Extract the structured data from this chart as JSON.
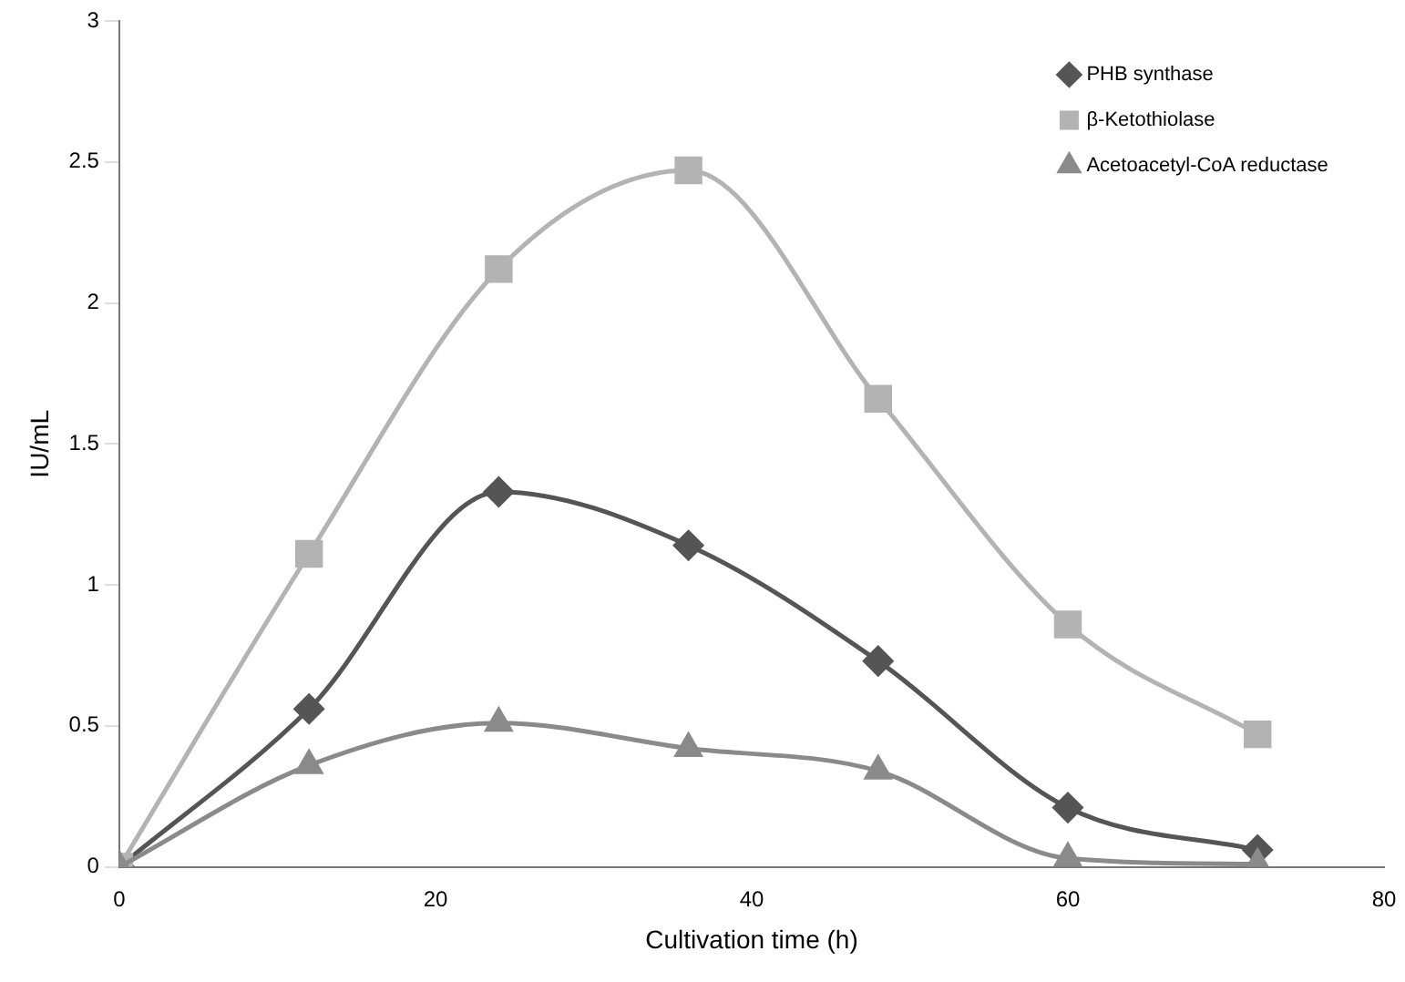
{
  "chart_data": {
    "type": "line",
    "xlabel": "Cultivation time (h)",
    "ylabel": "IU/mL",
    "x": [
      0,
      12,
      24,
      36,
      48,
      60,
      72
    ],
    "series": [
      {
        "name": "PHB synthase",
        "color": "#555555",
        "marker": "diamond",
        "values": [
          0,
          0.56,
          1.33,
          1.14,
          0.73,
          0.21,
          0.06
        ]
      },
      {
        "name": "β-Ketothiolase",
        "color": "#b3b3b3",
        "marker": "square",
        "values": [
          0,
          1.11,
          2.12,
          2.47,
          1.66,
          0.86,
          0.47
        ]
      },
      {
        "name": "Acetoacetyl-CoA reductase",
        "color": "#8a8a8a",
        "marker": "triangle",
        "values": [
          0,
          0.36,
          0.51,
          0.42,
          0.34,
          0.03,
          0.01
        ]
      }
    ],
    "xlim": [
      0,
      80
    ],
    "xticks": [
      0,
      20,
      40,
      60,
      80
    ],
    "ylim": [
      0,
      3
    ],
    "yticks": [
      0,
      0.5,
      1,
      1.5,
      2,
      2.5,
      3
    ],
    "grid": false,
    "legend": "top right"
  }
}
